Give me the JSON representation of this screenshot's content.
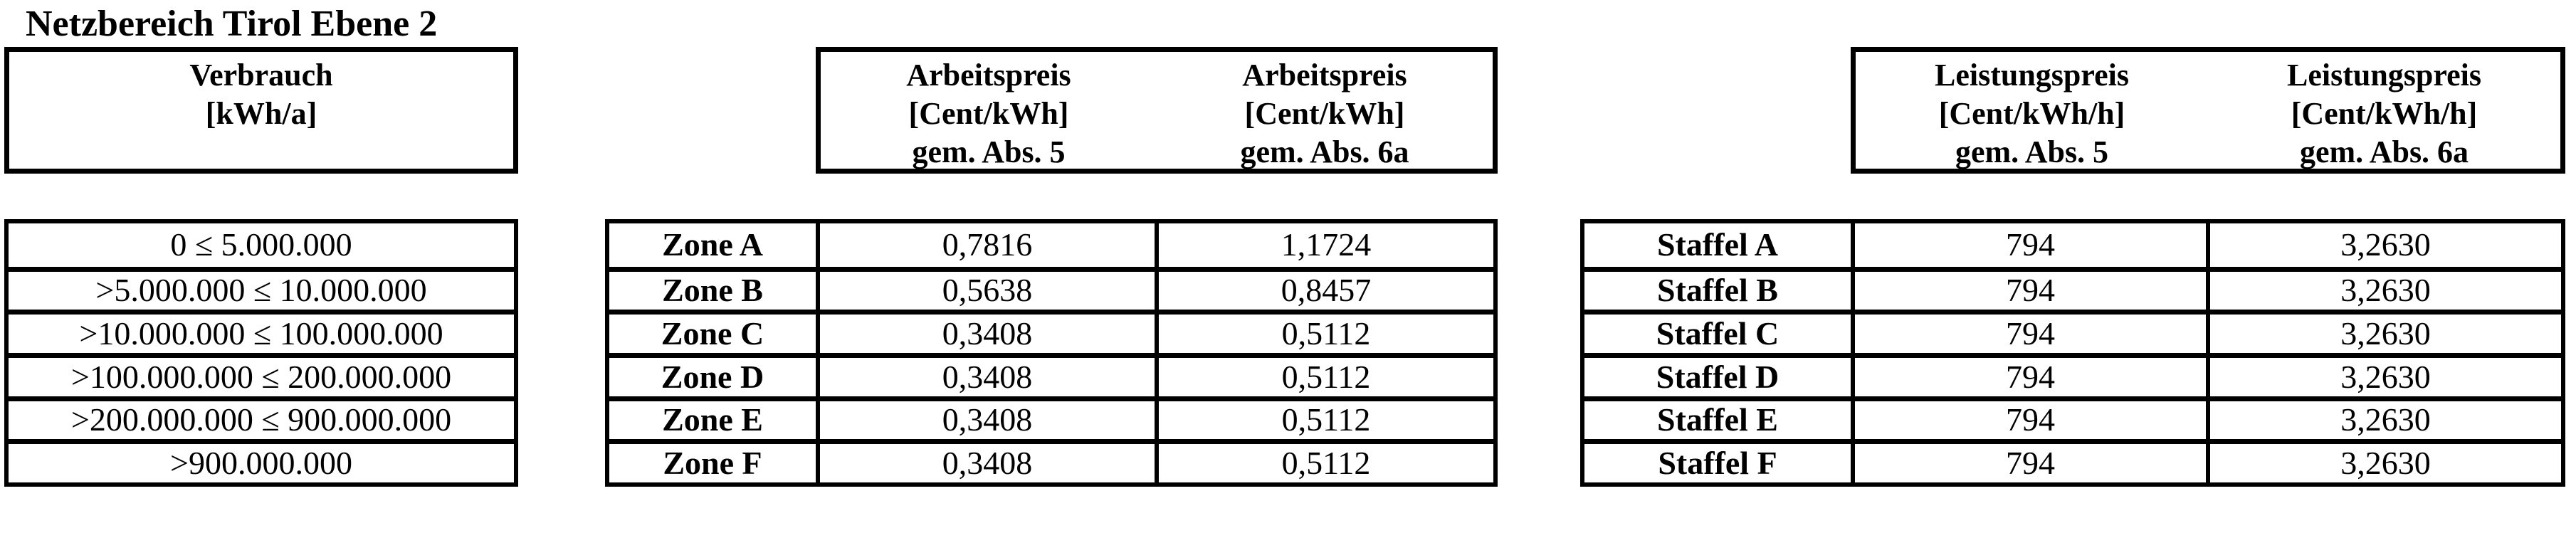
{
  "title": "Netzbereich Tirol Ebene 2",
  "colors": {
    "text": "#000000",
    "border": "#000000",
    "background": "#ffffff"
  },
  "verbrauch": {
    "header_line1": "Verbrauch",
    "header_line2": "[kWh/a]",
    "rows": [
      "0 ≤ 5.000.000",
      ">5.000.000 ≤ 10.000.000",
      ">10.000.000 ≤ 100.000.000",
      ">100.000.000 ≤ 200.000.000",
      ">200.000.000 ≤ 900.000.000",
      ">900.000.000"
    ]
  },
  "arbeitspreis": {
    "col_abs5": {
      "line1": "Arbeitspreis",
      "line2": "[Cent/kWh]",
      "line3": "gem. Abs. 5"
    },
    "col_abs6a": {
      "line1": "Arbeitspreis",
      "line2": "[Cent/kWh]",
      "line3": "gem. Abs. 6a"
    },
    "rows": [
      {
        "label": "Zone A",
        "abs5": "0,7816",
        "abs6a": "1,1724"
      },
      {
        "label": "Zone B",
        "abs5": "0,5638",
        "abs6a": "0,8457"
      },
      {
        "label": "Zone C",
        "abs5": "0,3408",
        "abs6a": "0,5112"
      },
      {
        "label": "Zone D",
        "abs5": "0,3408",
        "abs6a": "0,5112"
      },
      {
        "label": "Zone E",
        "abs5": "0,3408",
        "abs6a": "0,5112"
      },
      {
        "label": "Zone F",
        "abs5": "0,3408",
        "abs6a": "0,5112"
      }
    ]
  },
  "leistungspreis": {
    "col_abs5": {
      "line1": "Leistungspreis",
      "line2": "[Cent/kWh/h]",
      "line3": "gem. Abs. 5"
    },
    "col_abs6a": {
      "line1": "Leistungspreis",
      "line2": "[Cent/kWh/h]",
      "line3": "gem. Abs. 6a"
    },
    "rows": [
      {
        "label": "Staffel A",
        "abs5": "794",
        "abs6a": "3,2630"
      },
      {
        "label": "Staffel B",
        "abs5": "794",
        "abs6a": "3,2630"
      },
      {
        "label": "Staffel C",
        "abs5": "794",
        "abs6a": "3,2630"
      },
      {
        "label": "Staffel D",
        "abs5": "794",
        "abs6a": "3,2630"
      },
      {
        "label": "Staffel E",
        "abs5": "794",
        "abs6a": "3,2630"
      },
      {
        "label": "Staffel F",
        "abs5": "794",
        "abs6a": "3,2630"
      }
    ]
  }
}
